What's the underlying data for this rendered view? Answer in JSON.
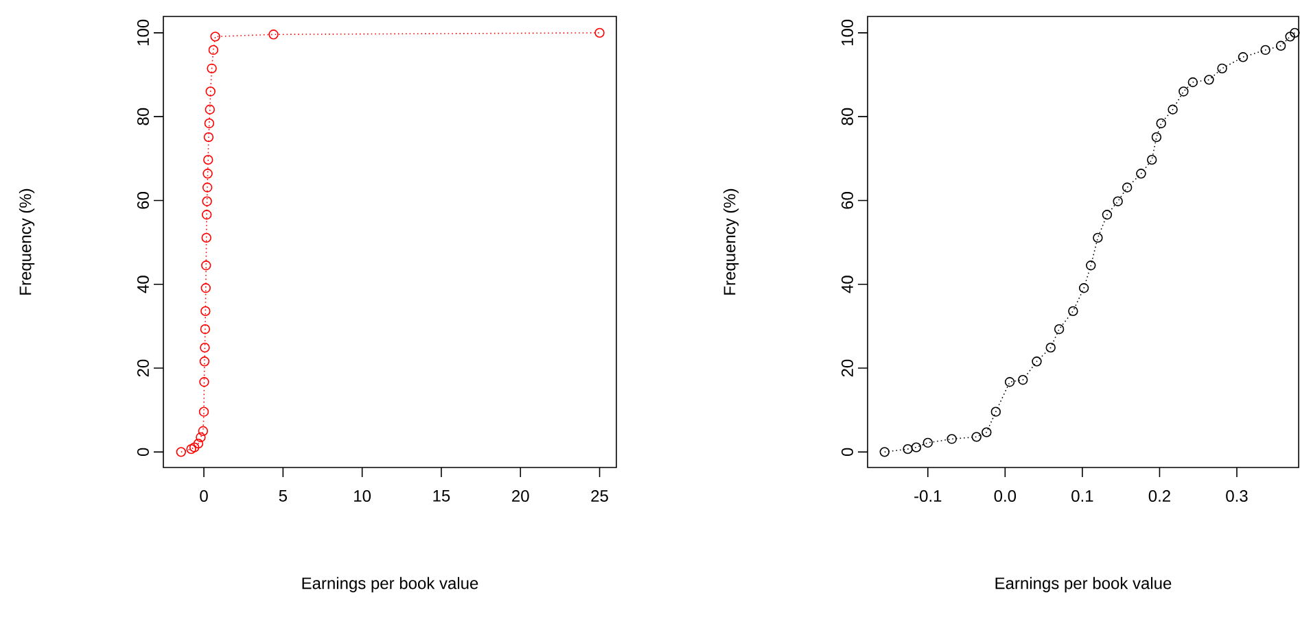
{
  "chart_data": [
    {
      "type": "line",
      "xlabel": "Earnings per book value",
      "ylabel": "Frequency (%)",
      "xlim": [
        -2.56,
        26.06
      ],
      "ylim": [
        -3.7,
        103.9
      ],
      "xticks": [
        0,
        5,
        10,
        15,
        20,
        25
      ],
      "yticks": [
        0,
        20,
        40,
        60,
        80,
        100
      ],
      "marker": "circle",
      "line_style": "dotted",
      "series": [
        {
          "color": "#ff0000",
          "x": [
            -1.44,
            -0.8,
            -0.6,
            -0.35,
            -0.2,
            -0.05,
            0.0,
            0.02,
            0.04,
            0.06,
            0.08,
            0.1,
            0.12,
            0.14,
            0.16,
            0.18,
            0.2,
            0.22,
            0.24,
            0.27,
            0.3,
            0.34,
            0.38,
            0.42,
            0.5,
            0.6,
            0.72,
            4.4,
            25
          ],
          "values": [
            0,
            0.7,
            1.1,
            2.0,
            3.5,
            5.0,
            9.6,
            16.7,
            21.6,
            24.9,
            29.3,
            33.6,
            39.1,
            44.5,
            51.1,
            56.6,
            59.8,
            63.1,
            66.4,
            69.7,
            75.1,
            78.4,
            81.7,
            86.0,
            91.5,
            95.9,
            99.1,
            99.6,
            100
          ]
        }
      ]
    },
    {
      "type": "line",
      "xlabel": "Earnings per book value",
      "ylabel": "Frequency (%)",
      "xlim": [
        -0.178,
        0.38
      ],
      "ylim": [
        -3.7,
        103.9
      ],
      "xticks": [
        -0.1,
        {
          "value": 0,
          "label": "0.0"
        },
        0.1,
        0.2,
        0.3
      ],
      "yticks": [
        0,
        20,
        40,
        60,
        80,
        100
      ],
      "marker": "circle",
      "line_style": "dotted",
      "series": [
        {
          "color": "#000000",
          "x": [
            -0.156,
            -0.126,
            -0.115,
            -0.1,
            -0.069,
            -0.037,
            -0.024,
            -0.012,
            0.006,
            0.023,
            0.041,
            0.059,
            0.07,
            0.088,
            0.102,
            0.111,
            0.12,
            0.132,
            0.146,
            0.158,
            0.176,
            0.19,
            0.196,
            0.202,
            0.217,
            0.231,
            0.243,
            0.264,
            0.281,
            0.308,
            0.337,
            0.357,
            0.369,
            0.375
          ],
          "values": [
            0,
            0.7,
            1.1,
            2.2,
            3.1,
            3.6,
            4.7,
            9.6,
            16.7,
            17.2,
            21.6,
            24.9,
            29.3,
            33.6,
            39.1,
            44.5,
            51.1,
            56.6,
            59.8,
            63.1,
            66.4,
            69.7,
            75.1,
            78.4,
            81.7,
            86.0,
            88.2,
            88.8,
            91.5,
            94.2,
            95.9,
            96.9,
            99.1,
            100
          ]
        }
      ]
    }
  ]
}
